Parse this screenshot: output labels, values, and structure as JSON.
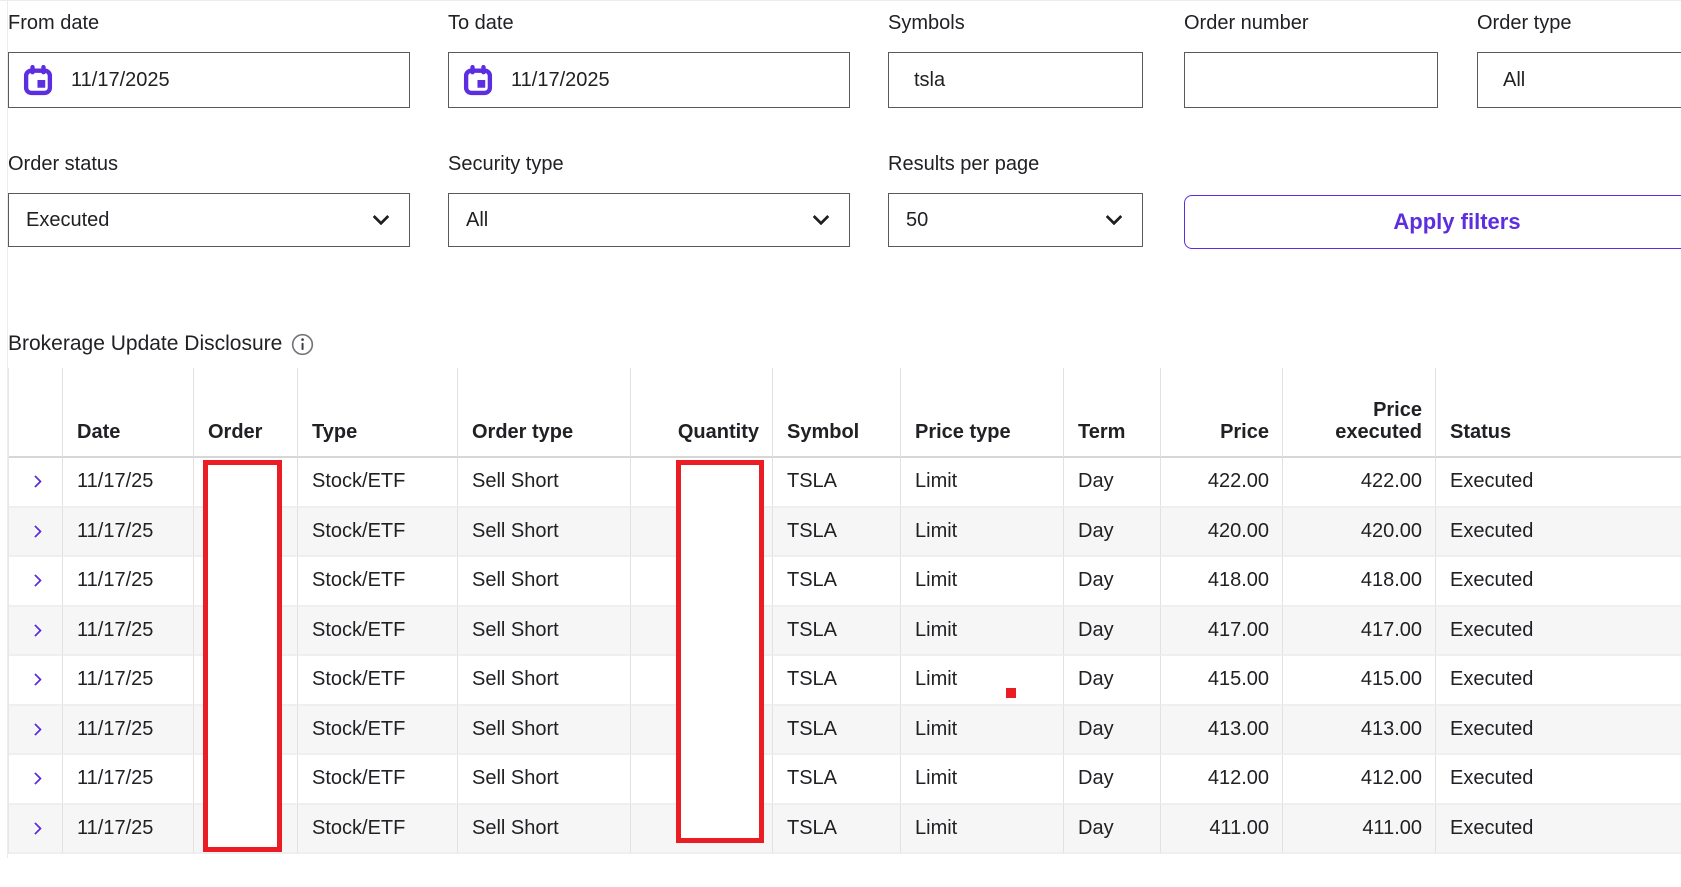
{
  "colors": {
    "accent_purple": "#5d2de0",
    "redaction_red": "#ea1c24",
    "field_border": "#595a5e",
    "row_alt_background": "#f6f6f6"
  },
  "filters": {
    "from_date": {
      "label": "From date",
      "value": "11/17/2025",
      "icon": "calendar-icon"
    },
    "to_date": {
      "label": "To date",
      "value": "11/17/2025",
      "icon": "calendar-icon"
    },
    "symbols": {
      "label": "Symbols",
      "value": "tsla"
    },
    "order_number": {
      "label": "Order number",
      "value": "",
      "placeholder": ""
    },
    "order_type": {
      "label": "Order type",
      "value": "All"
    },
    "order_status": {
      "label": "Order status",
      "value": "Executed"
    },
    "security_type": {
      "label": "Security type",
      "value": "All"
    },
    "results_per_page": {
      "label": "Results per page",
      "value": "50"
    },
    "apply_button_label": "Apply filters"
  },
  "disclosure": {
    "title": "Brokerage Update Disclosure",
    "icon": "info-icon"
  },
  "table": {
    "headers": {
      "expand": "",
      "date": "Date",
      "order": "Order",
      "type": "Type",
      "order_type": "Order type",
      "quantity": "Quantity",
      "symbol": "Symbol",
      "price_type": "Price type",
      "term": "Term",
      "price": "Price",
      "price_executed": "Price executed",
      "status": "Status"
    },
    "rows": [
      {
        "date": "11/17/25",
        "order": "",
        "type": "Stock/ETF",
        "order_type": "Sell Short",
        "quantity": "",
        "symbol": "TSLA",
        "price_type": "Limit",
        "term": "Day",
        "price": "422.00",
        "price_executed": "422.00",
        "status": "Executed"
      },
      {
        "date": "11/17/25",
        "order": "",
        "type": "Stock/ETF",
        "order_type": "Sell Short",
        "quantity": "",
        "symbol": "TSLA",
        "price_type": "Limit",
        "term": "Day",
        "price": "420.00",
        "price_executed": "420.00",
        "status": "Executed"
      },
      {
        "date": "11/17/25",
        "order": "",
        "type": "Stock/ETF",
        "order_type": "Sell Short",
        "quantity": "",
        "symbol": "TSLA",
        "price_type": "Limit",
        "term": "Day",
        "price": "418.00",
        "price_executed": "418.00",
        "status": "Executed"
      },
      {
        "date": "11/17/25",
        "order": "",
        "type": "Stock/ETF",
        "order_type": "Sell Short",
        "quantity": "",
        "symbol": "TSLA",
        "price_type": "Limit",
        "term": "Day",
        "price": "417.00",
        "price_executed": "417.00",
        "status": "Executed"
      },
      {
        "date": "11/17/25",
        "order": "",
        "type": "Stock/ETF",
        "order_type": "Sell Short",
        "quantity": "",
        "symbol": "TSLA",
        "price_type": "Limit",
        "term": "Day",
        "price": "415.00",
        "price_executed": "415.00",
        "status": "Executed"
      },
      {
        "date": "11/17/25",
        "order": "",
        "type": "Stock/ETF",
        "order_type": "Sell Short",
        "quantity": "",
        "symbol": "TSLA",
        "price_type": "Limit",
        "term": "Day",
        "price": "413.00",
        "price_executed": "413.00",
        "status": "Executed"
      },
      {
        "date": "11/17/25",
        "order": "",
        "type": "Stock/ETF",
        "order_type": "Sell Short",
        "quantity": "",
        "symbol": "TSLA",
        "price_type": "Limit",
        "term": "Day",
        "price": "412.00",
        "price_executed": "412.00",
        "status": "Executed"
      },
      {
        "date": "11/17/25",
        "order": "",
        "type": "Stock/ETF",
        "order_type": "Sell Short",
        "quantity": "",
        "symbol": "TSLA",
        "price_type": "Limit",
        "term": "Day",
        "price": "411.00",
        "price_executed": "411.00",
        "status": "Executed"
      }
    ]
  },
  "annotations": {
    "order_redaction_box": "redaction over Order column",
    "quantity_redaction_box": "redaction over Quantity column",
    "marker_dot": "red marker on Limit cell row 5"
  }
}
